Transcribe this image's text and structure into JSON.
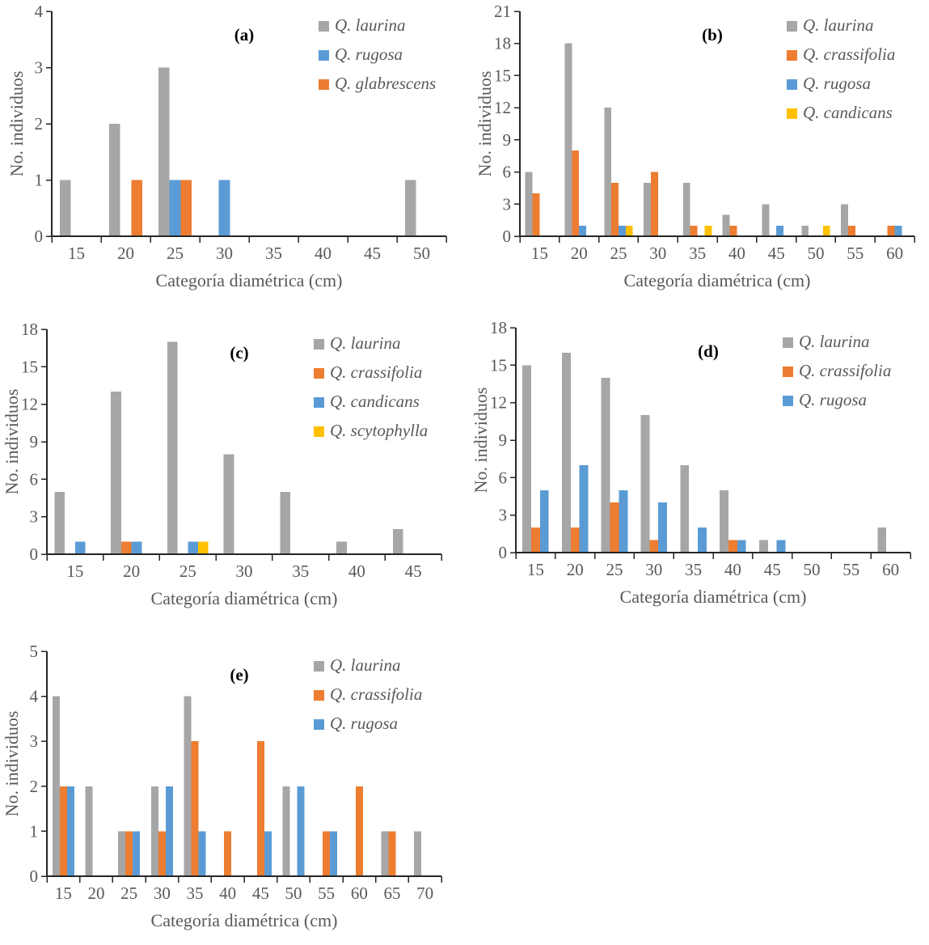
{
  "figure": {
    "background": "#ffffff",
    "axis_text_color": "#595959",
    "axis_line_color": "#262626"
  },
  "chart_data": [
    {
      "id": "a",
      "type": "bar",
      "panel_label": "(a)",
      "xlabel": "Categoría diamétrica (cm)",
      "ylabel": "No. individuos",
      "ylim": [
        0,
        4
      ],
      "ytick_step": 1,
      "grid": false,
      "legend_position": "top-right-inside",
      "categories": [
        "15",
        "20",
        "25",
        "30",
        "35",
        "40",
        "45",
        "50"
      ],
      "series": [
        {
          "name": "Q. laurina",
          "color": "#a6a6a6",
          "values": [
            1,
            2,
            3,
            0,
            0,
            0,
            0,
            1
          ]
        },
        {
          "name": "Q. rugosa",
          "color": "#5b9bd5",
          "values": [
            0,
            0,
            1,
            1,
            0,
            0,
            0,
            0
          ]
        },
        {
          "name": "Q. glabrescens",
          "color": "#ed7d31",
          "values": [
            0,
            1,
            1,
            0,
            0,
            0,
            0,
            0
          ]
        }
      ]
    },
    {
      "id": "b",
      "type": "bar",
      "panel_label": "(b)",
      "xlabel": "Categoría diamétrica (cm)",
      "ylabel": "No. individuos",
      "ylim": [
        0,
        21
      ],
      "ytick_step": 3,
      "grid": false,
      "legend_position": "top-right-inside",
      "categories": [
        "15",
        "20",
        "25",
        "30",
        "35",
        "40",
        "45",
        "50",
        "55",
        "60"
      ],
      "series": [
        {
          "name": "Q. laurina",
          "color": "#a6a6a6",
          "values": [
            6,
            18,
            12,
            5,
            5,
            2,
            3,
            1,
            3,
            0
          ]
        },
        {
          "name": "Q. crassifolia",
          "color": "#ed7d31",
          "values": [
            4,
            8,
            5,
            6,
            1,
            1,
            0,
            0,
            1,
            1
          ]
        },
        {
          "name": "Q. rugosa",
          "color": "#5b9bd5",
          "values": [
            0,
            1,
            1,
            0,
            0,
            0,
            1,
            0,
            0,
            1
          ]
        },
        {
          "name": "Q. candicans",
          "color": "#ffc000",
          "values": [
            0,
            0,
            1,
            0,
            1,
            0,
            0,
            1,
            0,
            0
          ]
        }
      ]
    },
    {
      "id": "c",
      "type": "bar",
      "panel_label": "(c)",
      "xlabel": "Categoría diamétrica (cm)",
      "ylabel": "No. individuos",
      "ylim": [
        0,
        18
      ],
      "ytick_step": 3,
      "grid": false,
      "legend_position": "top-right-inside",
      "categories": [
        "15",
        "20",
        "25",
        "30",
        "35",
        "40",
        "45"
      ],
      "series": [
        {
          "name": "Q. laurina",
          "color": "#a6a6a6",
          "values": [
            5,
            13,
            17,
            8,
            5,
            1,
            2
          ]
        },
        {
          "name": "Q. crassifolia",
          "color": "#ed7d31",
          "values": [
            0,
            1,
            0,
            0,
            0,
            0,
            0
          ]
        },
        {
          "name": "Q. candicans",
          "color": "#5b9bd5",
          "values": [
            1,
            1,
            1,
            0,
            0,
            0,
            0
          ]
        },
        {
          "name": "Q. scytophylla",
          "color": "#ffc000",
          "values": [
            0,
            0,
            1,
            0,
            0,
            0,
            0
          ]
        }
      ]
    },
    {
      "id": "d",
      "type": "bar",
      "panel_label": "(d)",
      "xlabel": "Categoría diamétrica (cm)",
      "ylabel": "No. individuos",
      "ylim": [
        0,
        18
      ],
      "ytick_step": 3,
      "grid": false,
      "legend_position": "top-right-inside",
      "categories": [
        "15",
        "20",
        "25",
        "30",
        "35",
        "40",
        "45",
        "50",
        "55",
        "60"
      ],
      "series": [
        {
          "name": "Q. laurina",
          "color": "#a6a6a6",
          "values": [
            15,
            16,
            14,
            11,
            7,
            5,
            1,
            0,
            0,
            2
          ]
        },
        {
          "name": "Q. crassifolia",
          "color": "#ed7d31",
          "values": [
            2,
            2,
            4,
            1,
            0,
            1,
            0,
            0,
            0,
            0
          ]
        },
        {
          "name": "Q. rugosa",
          "color": "#5b9bd5",
          "values": [
            5,
            7,
            5,
            4,
            2,
            1,
            1,
            0,
            0,
            0
          ]
        }
      ]
    },
    {
      "id": "e",
      "type": "bar",
      "panel_label": "(e)",
      "xlabel": "Categoría diamétrica (cm)",
      "ylabel": "No. individuos",
      "ylim": [
        0,
        5
      ],
      "ytick_step": 1,
      "grid": false,
      "legend_position": "top-right-inside",
      "categories": [
        "15",
        "20",
        "25",
        "30",
        "35",
        "40",
        "45",
        "50",
        "55",
        "60",
        "65",
        "70"
      ],
      "series": [
        {
          "name": "Q. laurina",
          "color": "#a6a6a6",
          "values": [
            4,
            2,
            1,
            2,
            4,
            0,
            0,
            2,
            0,
            0,
            1,
            1
          ]
        },
        {
          "name": "Q. crassifolia",
          "color": "#ed7d31",
          "values": [
            2,
            0,
            1,
            1,
            3,
            1,
            3,
            0,
            1,
            2,
            1,
            0
          ]
        },
        {
          "name": "Q. rugosa",
          "color": "#5b9bd5",
          "values": [
            2,
            0,
            1,
            2,
            1,
            0,
            1,
            2,
            1,
            0,
            0,
            0
          ]
        }
      ]
    }
  ]
}
